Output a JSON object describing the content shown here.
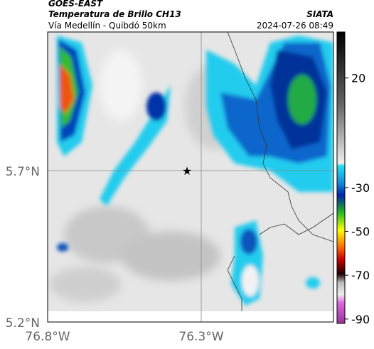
{
  "header": {
    "title": "GOES-EAST",
    "subtitle": "Temperatura de Brillo CH13",
    "source": "SIATA",
    "route": "Vía Medellín - Quibdó 50km",
    "timestamp": "2024-07-26 08:49"
  },
  "axes": {
    "y_labels": [
      "5.7°N",
      "5.2°N"
    ],
    "x_labels": [
      "76.8°W",
      "76.3°W"
    ]
  },
  "colorbar": {
    "limits": [
      -92,
      41
    ],
    "ticks": [
      20,
      -30,
      -50,
      -70,
      -90
    ]
  }
}
